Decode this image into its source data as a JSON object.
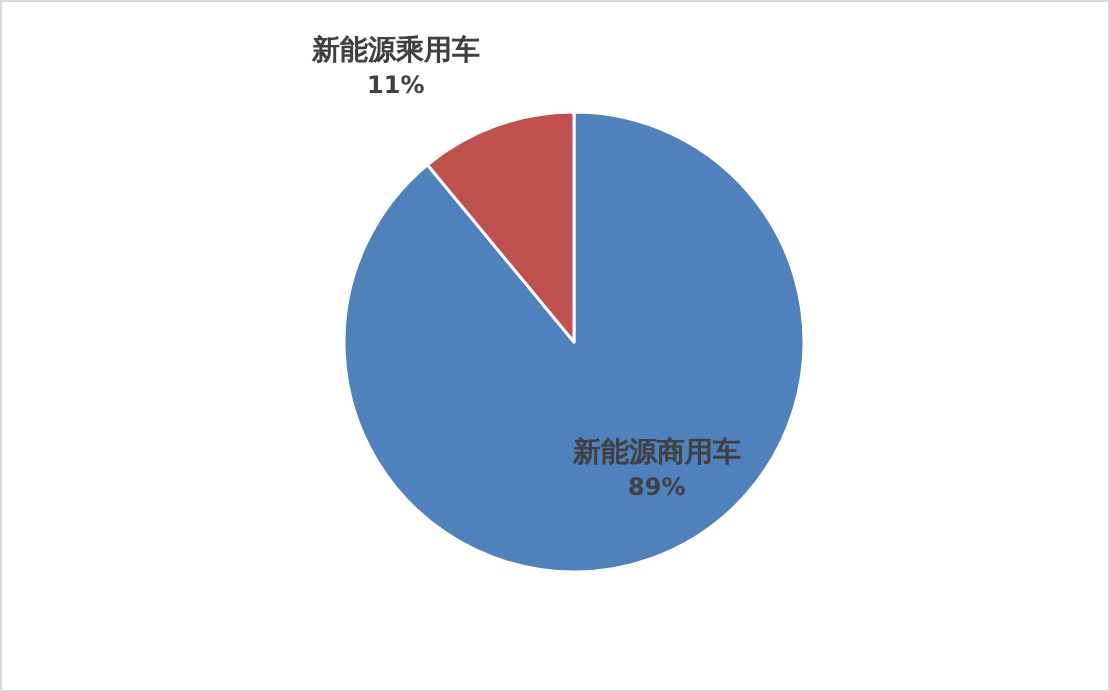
{
  "chart_data": {
    "type": "pie",
    "categories": [
      "新能源商用车",
      "新能源乘用车"
    ],
    "values": [
      89,
      11
    ],
    "colors": [
      "#4f81bd",
      "#c0504d"
    ],
    "value_labels": [
      "89%",
      "11%"
    ]
  }
}
